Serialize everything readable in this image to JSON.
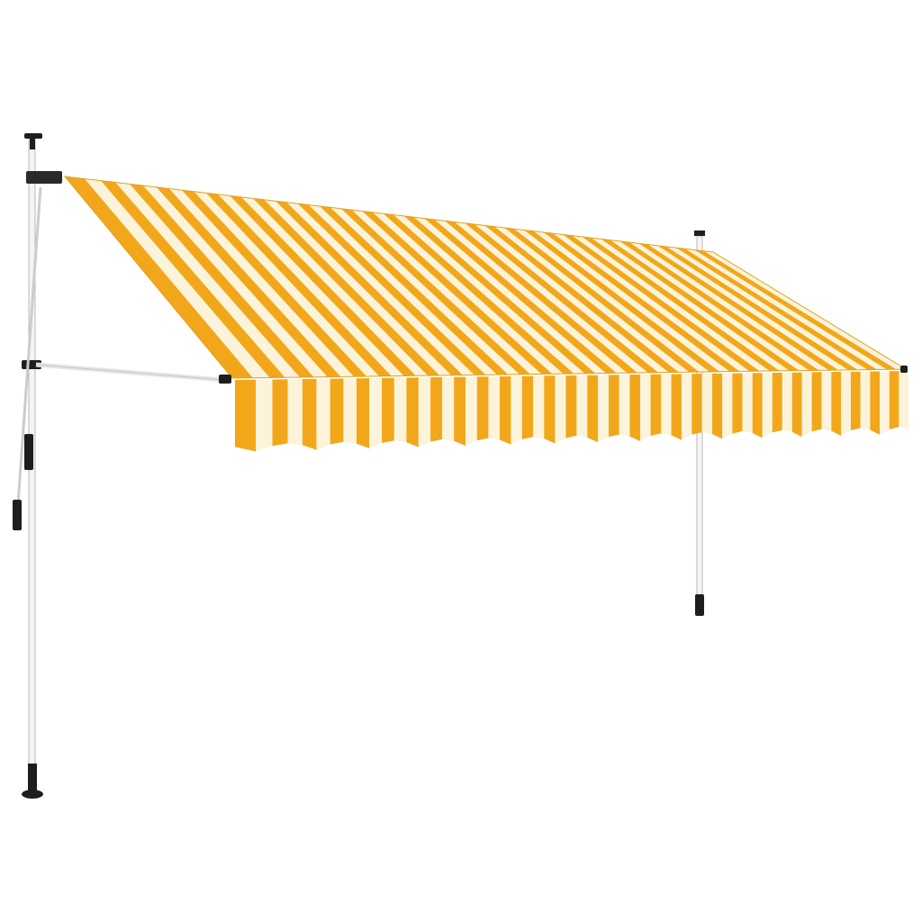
{
  "image": {
    "subject": "retractable-striped-awning",
    "colors": {
      "stripe_primary": "#f2a71b",
      "stripe_secondary": "#fbf4da",
      "pole": "#f4f4f4",
      "pole_outline": "#b8b8b8",
      "fittings": "#1e1e1e",
      "background": "#ffffff"
    }
  }
}
